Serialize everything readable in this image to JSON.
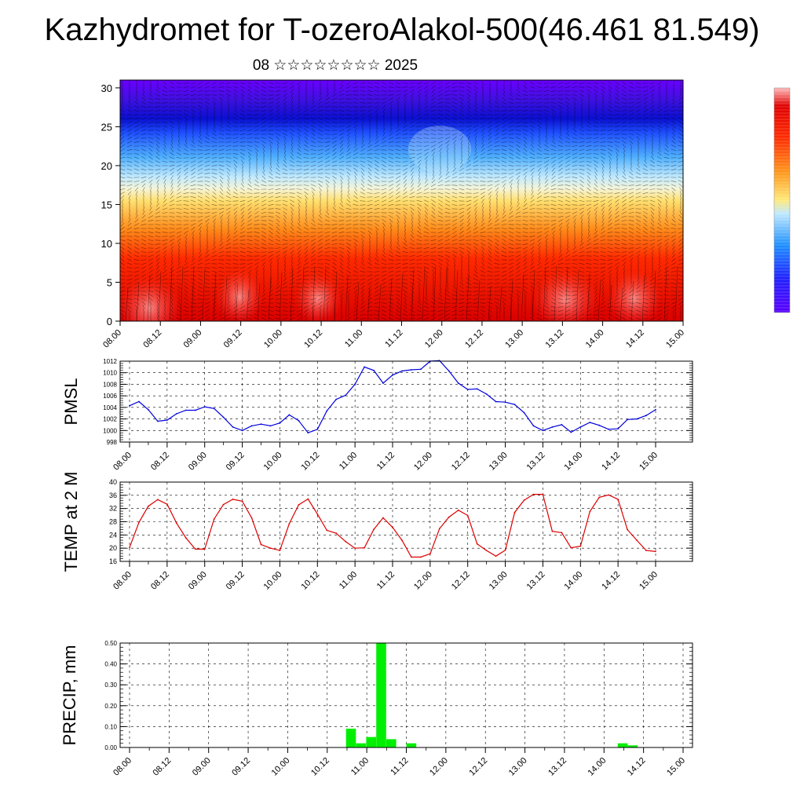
{
  "title": "Kazhydromet for T-ozeroAlakol-500(46.461 81.549)",
  "subtitle": "08 ☆☆☆☆☆☆☆☆ 2025",
  "colors": {
    "pmsl_line": "#0000dd",
    "temp_line": "#dd0000",
    "precip_bar": "#00ee00",
    "grid": "#000000",
    "colorbar": [
      "#5a00ff",
      "#2020ff",
      "#1e90ff",
      "#bfe9ff",
      "#ffe97a",
      "#ff9a1e",
      "#ff2a00",
      "#e00000",
      "#ffbcbc"
    ]
  },
  "chart_data": [
    {
      "type": "heatmap",
      "name": "cross-section",
      "x_ticks": [
        "08.00",
        "08.12",
        "09.00",
        "09.12",
        "10.00",
        "10.12",
        "11.00",
        "11.12",
        "12.00",
        "12.12",
        "13.00",
        "13.12",
        "14.00",
        "14.12",
        "15.00"
      ],
      "y_ticks": [
        "0",
        "5",
        "10",
        "15",
        "20",
        "25",
        "30"
      ],
      "ylim": [
        0,
        31
      ],
      "note_layers": "warm (red) near surface, yellow about 15, light blue about 18, blue/violet above 22"
    },
    {
      "type": "line",
      "name": "pmsl",
      "ylabel": "PMSL",
      "x_ticks": [
        "08.00",
        "08.12",
        "09.00",
        "09.12",
        "10.00",
        "10.12",
        "11.00",
        "11.12",
        "12.00",
        "12.12",
        "13.00",
        "13.12",
        "14.00",
        "14.12",
        "15.00"
      ],
      "y_ticks": [
        "998",
        "1000",
        "1002",
        "1004",
        "1006",
        "1008",
        "1010",
        "1012"
      ],
      "ylim": [
        998,
        1012
      ],
      "values": [
        1004.3,
        1005,
        1003.6,
        1001.6,
        1001.8,
        1002.9,
        1003.5,
        1003.5,
        1004.1,
        1003.8,
        1002.3,
        1000.6,
        1000,
        1000.8,
        1001.1,
        1000.8,
        1001.3,
        1002.7,
        1001.7,
        999.6,
        1000.2,
        1003.4,
        1005.4,
        1006.1,
        1008,
        1011,
        1010.4,
        1008.2,
        1009.6,
        1010.3,
        1010.5,
        1010.6,
        1012,
        1012.1,
        1010.3,
        1008.2,
        1007.1,
        1007.2,
        1006.3,
        1005,
        1004.9,
        1004.5,
        1003.1,
        1000.8,
        1000,
        1000.6,
        1001,
        999.7,
        1000.6,
        1001.4,
        1000.9,
        1000.2,
        1000.3,
        1001.9,
        1002,
        1002.6,
        1003.6
      ]
    },
    {
      "type": "line",
      "name": "temp",
      "ylabel": "TEMP at 2 M",
      "x_ticks": [
        "08.00",
        "08.12",
        "09.00",
        "09.12",
        "10.00",
        "10.12",
        "11.00",
        "11.12",
        "12.00",
        "12.12",
        "13.00",
        "13.12",
        "14.00",
        "14.12",
        "15.00"
      ],
      "y_ticks": [
        "16",
        "20",
        "24",
        "28",
        "32",
        "36",
        "40"
      ],
      "ylim": [
        16,
        40
      ],
      "values": [
        20.2,
        27.8,
        32.7,
        34.7,
        33.3,
        27.6,
        23.1,
        19.7,
        19.7,
        28.8,
        33.2,
        34.8,
        34.2,
        29.2,
        21.1,
        20,
        19.3,
        27.4,
        33.1,
        34.9,
        30.3,
        25.4,
        24.5,
        22,
        20,
        20.1,
        25.7,
        29.2,
        26.3,
        22.4,
        17.3,
        17.3,
        18.3,
        25.9,
        29.4,
        31.5,
        29.9,
        21.3,
        19.3,
        17.6,
        19.4,
        30.8,
        34.5,
        36.3,
        36.3,
        25.1,
        24.7,
        20.1,
        20.6,
        31.1,
        35.4,
        36.1,
        34.8,
        25.6,
        22.4,
        19.3,
        19
      ]
    },
    {
      "type": "bar",
      "name": "precip",
      "ylabel": "PRECIP, mm",
      "x_ticks": [
        "08.00",
        "08.12",
        "09.00",
        "09.12",
        "10.00",
        "10.12",
        "11.00",
        "11.12",
        "12.00",
        "12.12",
        "13.00",
        "13.12",
        "14.00",
        "14.12",
        "15.00"
      ],
      "y_ticks": [
        "0.00",
        "0.10",
        "0.20",
        "0.30",
        "0.40",
        "0.50"
      ],
      "ylim": [
        0,
        0.5
      ],
      "values": [
        0,
        0,
        0,
        0,
        0,
        0,
        0,
        0,
        0,
        0,
        0,
        0,
        0,
        0,
        0,
        0,
        0,
        0,
        0,
        0,
        0,
        0,
        0.09,
        0.02,
        0.05,
        0.5,
        0.04,
        0,
        0.02,
        0,
        0,
        0,
        0,
        0,
        0,
        0,
        0,
        0,
        0,
        0,
        0,
        0,
        0,
        0,
        0,
        0,
        0,
        0,
        0,
        0.02,
        0.01,
        0,
        0,
        0,
        0,
        0
      ]
    }
  ]
}
